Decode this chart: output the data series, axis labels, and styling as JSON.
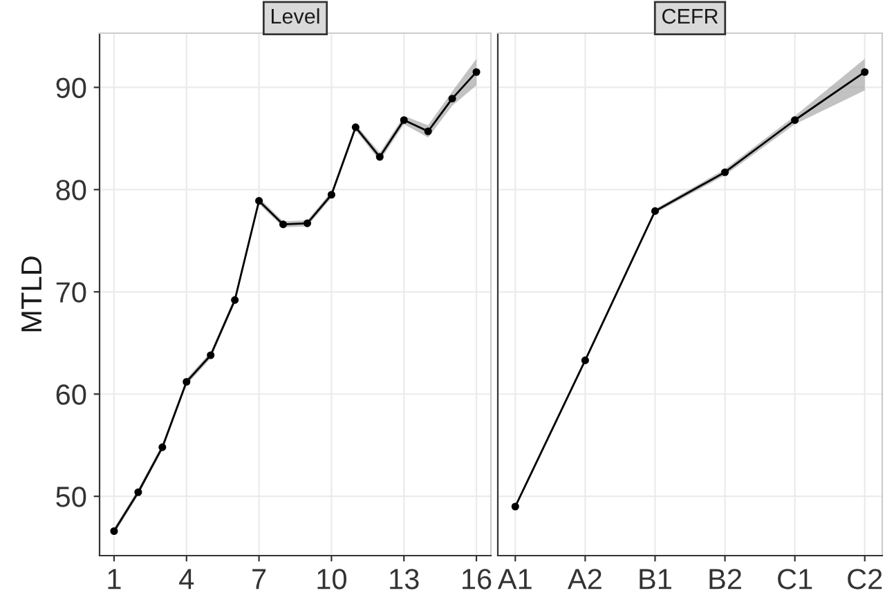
{
  "chart_data": [
    {
      "type": "line",
      "title": "Level",
      "ylabel": "MTLD",
      "x": [
        1,
        2,
        3,
        4,
        5,
        6,
        7,
        8,
        9,
        10,
        11,
        12,
        13,
        14,
        15,
        16
      ],
      "xlim": [
        0.4,
        16.6
      ],
      "xticks": [
        1,
        4,
        7,
        10,
        13,
        16
      ],
      "ylim": [
        44.2,
        95.3
      ],
      "yticks": [
        50,
        60,
        70,
        80,
        90
      ],
      "grid": true,
      "marker": "circle",
      "line_style": "solid",
      "series": [
        {
          "color": "#000000",
          "values": [
            46.6,
            50.4,
            54.8,
            61.2,
            63.8,
            69.2,
            78.9,
            76.6,
            76.7,
            79.5,
            86.1,
            83.2,
            86.8,
            85.7,
            88.9,
            91.5
          ],
          "lower": [
            46.3,
            50.1,
            54.5,
            60.9,
            63.5,
            68.9,
            78.6,
            76.3,
            76.4,
            79.2,
            85.8,
            82.8,
            86.4,
            85.1,
            88.2,
            90.2
          ],
          "upper": [
            46.9,
            50.7,
            55.1,
            61.5,
            64.1,
            69.5,
            79.2,
            76.9,
            77.0,
            79.8,
            86.4,
            83.6,
            87.2,
            86.3,
            89.6,
            92.8
          ]
        }
      ]
    },
    {
      "type": "line",
      "title": "CEFR",
      "categories": [
        "A1",
        "A2",
        "B1",
        "B2",
        "C1",
        "C2"
      ],
      "ylim": [
        44.2,
        95.3
      ],
      "tick_labels": "x",
      "grid": true,
      "marker": "circle",
      "line_style": "solid",
      "series": [
        {
          "color": "#000000",
          "values": [
            49.0,
            63.3,
            77.9,
            81.7,
            86.8,
            91.5
          ],
          "lower": [
            48.8,
            63.1,
            77.7,
            81.4,
            86.4,
            89.7
          ],
          "upper": [
            49.2,
            63.5,
            78.1,
            82.0,
            87.2,
            92.8
          ]
        }
      ]
    }
  ]
}
